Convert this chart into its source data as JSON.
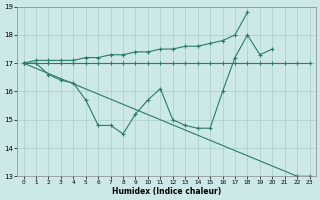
{
  "xlabel": "Humidex (Indice chaleur)",
  "x_values": [
    0,
    1,
    2,
    3,
    4,
    5,
    6,
    7,
    8,
    9,
    10,
    11,
    12,
    13,
    14,
    15,
    16,
    17,
    18,
    19,
    20,
    21,
    22,
    23
  ],
  "line1_y": [
    17.0,
    17.0,
    17.0,
    17.0,
    17.0,
    17.0,
    17.0,
    17.0,
    17.0,
    17.0,
    17.0,
    17.0,
    17.0,
    17.0,
    17.0,
    17.0,
    17.0,
    17.0,
    17.0,
    17.0,
    17.0,
    17.0,
    17.0,
    17.0
  ],
  "line2_x": [
    0,
    1,
    2,
    3,
    4,
    5,
    6,
    7,
    8,
    9,
    10,
    11,
    12,
    13,
    14,
    15,
    16,
    17,
    18,
    19,
    20
  ],
  "line2_y": [
    17.0,
    17.0,
    16.6,
    16.4,
    16.3,
    15.7,
    14.8,
    14.8,
    14.5,
    15.2,
    15.7,
    16.1,
    15.0,
    14.8,
    14.7,
    14.7,
    16.0,
    17.2,
    18.0,
    17.3,
    17.5
  ],
  "line3_x": [
    0,
    1,
    2,
    3,
    4,
    5,
    6,
    7,
    8,
    9,
    10,
    11,
    12,
    13,
    14,
    15,
    16,
    17,
    18
  ],
  "line3_y": [
    17.0,
    17.1,
    17.1,
    17.1,
    17.1,
    17.2,
    17.2,
    17.3,
    17.3,
    17.4,
    17.4,
    17.5,
    17.5,
    17.6,
    17.6,
    17.7,
    17.8,
    18.0,
    18.8
  ],
  "line4_x": [
    0,
    22,
    23
  ],
  "line4_y": [
    17.0,
    13.0,
    13.0
  ],
  "ylim": [
    13,
    19
  ],
  "yticks": [
    13,
    14,
    15,
    16,
    17,
    18,
    19
  ],
  "xticks": [
    0,
    1,
    2,
    3,
    4,
    5,
    6,
    7,
    8,
    9,
    10,
    11,
    12,
    13,
    14,
    15,
    16,
    17,
    18,
    19,
    20,
    21,
    22,
    23
  ],
  "line_color": "#2a7a6e",
  "bg_color": "#cce8e8",
  "grid_color": "#aacece"
}
